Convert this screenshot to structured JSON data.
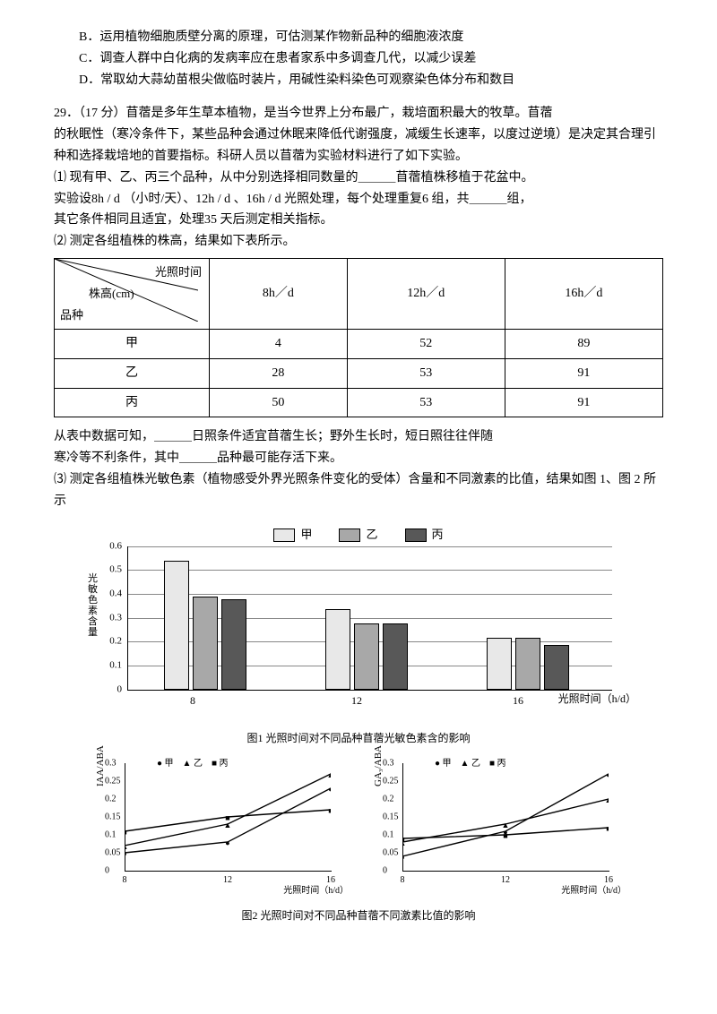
{
  "options": {
    "B": "B．运用植物细胞质壁分离的原理，可估测某作物新品种的细胞液浓度",
    "C": "C．调查人群中白化病的发病率应在患者家系中多调查几代，以减少误差",
    "D": "D．常取幼大蒜幼苗根尖做临时装片，用碱性染料染色可观察染色体分布和数目"
  },
  "q29": {
    "head": "29．（17 分）苜蓿是多年生草本植物，是当今世界上分布最广，栽培面积最大的牧草。苜蓿",
    "p1": "的秋眠性（寒冷条件下，某些品种会通过休眠来降低代谢强度，减缓生长速率，以度过逆境）是决定其合理引种和选择栽培地的首要指标。科研人员以苜蓿为实验材料进行了如下实验。",
    "p2a": "⑴ 现有甲、乙、丙三个品种，从中分别选择相同数量的＿＿＿苜蓿植株移植于花盆中。",
    "p2b": "实验设8h / d （小时/天）、12h / d 、16h / d 光照处理，每个处理重复6 组，共＿＿＿组，",
    "p2c": "其它条件相同且适宜，处理35 天后测定相关指标。",
    "p3": "⑵ 测定各组植株的株高，结果如下表所示。",
    "table": {
      "diag_top": "光照时间",
      "diag_mid": "株高(cm)",
      "diag_bot": "品种",
      "cols": [
        "8h／d",
        "12h／d",
        "16h／d"
      ],
      "rows": [
        {
          "k": "甲",
          "v": [
            "4",
            "52",
            "89"
          ]
        },
        {
          "k": "乙",
          "v": [
            "28",
            "53",
            "91"
          ]
        },
        {
          "k": "丙",
          "v": [
            "50",
            "53",
            "91"
          ]
        }
      ]
    },
    "p4a": "从表中数据可知，＿＿＿日照条件适宜苜蓿生长；野外生长时，短日照往往伴随",
    "p4b": "寒冷等不利条件，其中＿＿＿品种最可能存活下来。",
    "p5": "⑶ 测定各组植株光敏色素（植物感受外界光照条件变化的受体）含量和不同激素的比值，结果如图 1、图 2 所示"
  },
  "legend": {
    "A": "甲",
    "B": "乙",
    "C": "丙"
  },
  "colors": {
    "A": "#e8e8e8",
    "B": "#a8a8a8",
    "C": "#585858",
    "axis": "#000",
    "grid": "#999"
  },
  "barChart": {
    "yTitle": "光敏色素含量",
    "yMax": 0.6,
    "yTicks": [
      0,
      0.1,
      0.2,
      0.3,
      0.4,
      0.5,
      0.6
    ],
    "cats": [
      "8",
      "12",
      "16"
    ],
    "xUnit": "光照时间（h/d）",
    "data": {
      "8": {
        "A": 0.53,
        "B": 0.38,
        "C": 0.37
      },
      "12": {
        "A": 0.33,
        "B": 0.27,
        "C": 0.27
      },
      "16": {
        "A": 0.21,
        "B": 0.21,
        "C": 0.18
      }
    },
    "caption": "图1  光照时间对不同品种苜蓿光敏色素含的影响"
  },
  "lineCharts": {
    "yTicks": [
      0,
      0.05,
      0.1,
      0.15,
      0.2,
      0.25,
      0.3
    ],
    "xTicks": [
      8,
      12,
      16
    ],
    "xUnit": "光照时间（h/d）",
    "legend": [
      "甲",
      "乙",
      "丙"
    ],
    "left": {
      "yLabel": "IAA/ABA",
      "series": {
        "A": [
          {
            "x": 8,
            "y": 0.05
          },
          {
            "x": 12,
            "y": 0.08
          },
          {
            "x": 16,
            "y": 0.23
          }
        ],
        "B": [
          {
            "x": 8,
            "y": 0.07
          },
          {
            "x": 12,
            "y": 0.13
          },
          {
            "x": 16,
            "y": 0.27
          }
        ],
        "C": [
          {
            "x": 8,
            "y": 0.11
          },
          {
            "x": 12,
            "y": 0.15
          },
          {
            "x": 16,
            "y": 0.17
          }
        ]
      }
    },
    "right": {
      "yLabel": "GA₃/ABA",
      "series": {
        "A": [
          {
            "x": 8,
            "y": 0.04
          },
          {
            "x": 12,
            "y": 0.11
          },
          {
            "x": 16,
            "y": 0.27
          }
        ],
        "B": [
          {
            "x": 8,
            "y": 0.08
          },
          {
            "x": 12,
            "y": 0.13
          },
          {
            "x": 16,
            "y": 0.2
          }
        ],
        "C": [
          {
            "x": 8,
            "y": 0.09
          },
          {
            "x": 12,
            "y": 0.1
          },
          {
            "x": 16,
            "y": 0.12
          }
        ]
      }
    },
    "caption": "图2  光照时间对不同品种苜蓿不同激素比值的影响"
  }
}
